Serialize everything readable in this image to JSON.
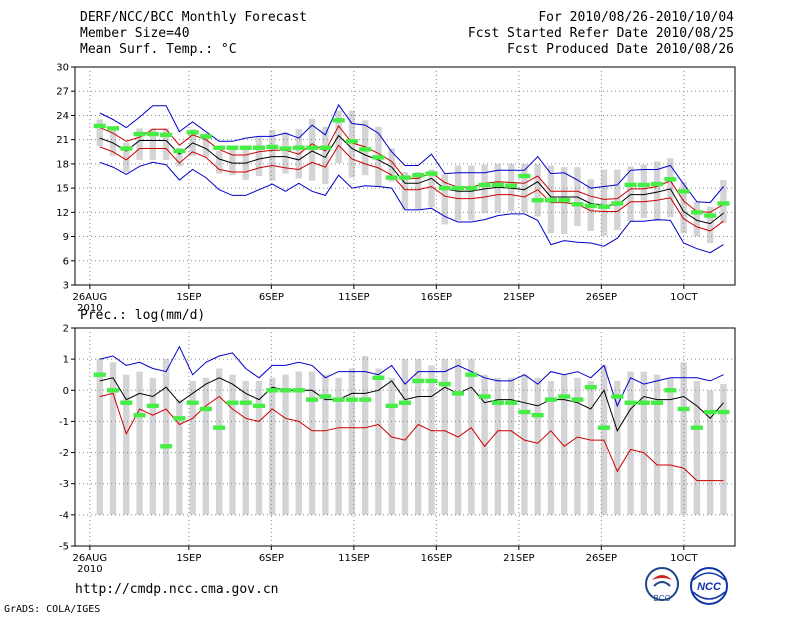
{
  "header": {
    "line1_left": "DERF/NCC/BCC Monthly Forecast",
    "line2_left": "Member Size=40",
    "line3_left": "Mean Surf. Temp.: °C",
    "line1_right": "For 2010/08/26-2010/10/04",
    "line2_right": "Fcst Started Refer Date 2010/08/25",
    "line3_right": "Fcst Produced Date 2010/08/26"
  },
  "prec_label": "Prec.: log(mm/d)",
  "footer": {
    "url": "http://cmdp.ncc.cma.gov.cn",
    "credit": "GrADS: COLA/IGES"
  },
  "logos": {
    "left": "BCC",
    "right": "NCC"
  },
  "colors": {
    "box": "#d4d4d6",
    "max": "#0000cc",
    "min": "#0000cc",
    "mean": "#000000",
    "spread": "#cc0000",
    "observed": "#44ee44",
    "grid": "#888888"
  },
  "chart_data": [
    {
      "type": "line",
      "title": "Mean Surf. Temp.: °C",
      "x_tick_labels": [
        "26AUG\n2010",
        "1SEP",
        "6SEP",
        "11SEP",
        "16SEP",
        "21SEP",
        "26SEP",
        "1OCT"
      ],
      "x_tick_days": [
        1,
        7,
        12,
        17,
        22,
        27,
        32,
        37
      ],
      "ylim": [
        3,
        30
      ],
      "y_ticks": [
        3,
        6,
        9,
        12,
        15,
        18,
        21,
        24,
        27,
        30
      ],
      "days": 40,
      "series": [
        {
          "name": "max",
          "values": [
            24.3,
            23.5,
            22.5,
            23.8,
            25.2,
            25.2,
            22.0,
            23.2,
            22.0,
            20.8,
            20.8,
            21.2,
            21.4,
            21.4,
            21.8,
            21.2,
            22.8,
            21.6,
            25.3,
            23.0,
            22.8,
            21.8,
            19.5,
            17.8,
            17.8,
            19.2,
            16.8,
            16.9,
            16.9,
            16.9,
            17.2,
            17.2,
            17.2,
            18.9,
            16.8,
            16.9,
            16.0,
            15.0,
            15.2,
            15.4,
            17.2,
            17.3,
            17.3,
            17.8,
            15.5,
            13.3,
            13.2,
            15.2
          ]
        },
        {
          "name": "upper",
          "values": [
            22.5,
            21.8,
            20.8,
            21.3,
            22.3,
            22.3,
            20.3,
            21.6,
            21.0,
            19.8,
            19.1,
            19.1,
            19.5,
            19.7,
            19.7,
            19.2,
            20.5,
            19.6,
            22.7,
            20.6,
            20.1,
            19.3,
            18.3,
            16.2,
            16.2,
            16.9,
            15.7,
            15.1,
            15.1,
            15.6,
            15.8,
            15.7,
            15.6,
            16.5,
            14.6,
            14.6,
            14.6,
            14.0,
            13.6,
            13.7,
            14.9,
            14.9,
            15.2,
            15.9,
            13.4,
            12.1,
            12.0,
            13.0
          ]
        },
        {
          "name": "mean",
          "values": [
            21.2,
            20.6,
            19.6,
            20.9,
            20.9,
            20.9,
            19.2,
            20.6,
            19.9,
            18.6,
            18.1,
            18.1,
            18.6,
            18.9,
            18.9,
            18.5,
            19.6,
            18.8,
            21.5,
            19.9,
            19.1,
            18.5,
            17.6,
            15.6,
            15.6,
            16.2,
            14.9,
            14.6,
            14.6,
            14.9,
            15.1,
            15.0,
            14.8,
            15.8,
            13.9,
            13.9,
            13.9,
            13.1,
            12.9,
            12.9,
            14.2,
            14.2,
            14.5,
            14.9,
            12.1,
            11.0,
            10.6,
            11.9
          ]
        },
        {
          "name": "lower",
          "values": [
            20.1,
            19.5,
            18.5,
            19.9,
            19.9,
            19.9,
            18.1,
            19.5,
            18.8,
            17.3,
            17.0,
            17.0,
            17.5,
            17.8,
            17.5,
            17.3,
            18.2,
            17.6,
            20.3,
            18.6,
            18.0,
            17.5,
            16.6,
            14.8,
            14.8,
            15.2,
            14.0,
            13.7,
            13.7,
            13.9,
            14.2,
            14.2,
            13.9,
            14.8,
            13.2,
            13.2,
            13.0,
            12.2,
            12.1,
            12.1,
            13.3,
            13.3,
            13.5,
            13.8,
            11.2,
            10.2,
            9.7,
            10.9
          ]
        },
        {
          "name": "min",
          "values": [
            18.2,
            17.6,
            16.7,
            17.7,
            18.2,
            17.9,
            16.0,
            17.3,
            16.3,
            14.8,
            14.1,
            14.1,
            14.8,
            15.5,
            14.6,
            15.6,
            14.6,
            14.1,
            16.6,
            15.0,
            15.3,
            15.2,
            15.0,
            12.3,
            12.3,
            12.5,
            11.5,
            10.8,
            10.8,
            11.1,
            11.6,
            11.8,
            11.8,
            11.0,
            8.0,
            8.5,
            8.3,
            8.2,
            7.8,
            8.8,
            10.9,
            10.9,
            11.1,
            11.0,
            8.2,
            7.5,
            7.0,
            8.0
          ]
        },
        {
          "name": "box_top",
          "values": [
            23.5,
            22.5,
            20.6,
            22.4,
            22.4,
            22.4,
            20.0,
            22.3,
            21.8,
            19.6,
            20.0,
            20.0,
            21.3,
            22.2,
            21.9,
            22.3,
            23.6,
            22.6,
            24.6,
            24.6,
            23.4,
            22.6,
            19.9,
            17.0,
            17.0,
            17.3,
            16.7,
            17.8,
            17.8,
            17.9,
            18.0,
            18.0,
            18.0,
            18.0,
            17.8,
            17.6,
            17.6,
            16.1,
            17.3,
            17.3,
            17.7,
            17.9,
            18.3,
            18.7,
            15.8,
            13.3,
            12.7,
            16.0
          ]
        },
        {
          "name": "box_bottom",
          "values": [
            20.2,
            19.0,
            17.0,
            18.5,
            18.5,
            18.5,
            17.7,
            19.0,
            18.8,
            16.8,
            16.6,
            16.0,
            16.5,
            15.9,
            16.8,
            16.2,
            15.9,
            15.5,
            18.1,
            16.3,
            16.6,
            15.2,
            15.8,
            12.4,
            12.4,
            12.6,
            10.5,
            11.0,
            11.0,
            11.9,
            11.9,
            12.1,
            12.0,
            11.5,
            9.4,
            9.3,
            10.3,
            9.7,
            9.1,
            9.8,
            10.9,
            11.3,
            10.9,
            11.4,
            9.4,
            9.0,
            8.2,
            10.7
          ]
        },
        {
          "name": "observed",
          "values": [
            22.7,
            22.4,
            19.9,
            21.7,
            21.7,
            21.6,
            19.6,
            21.9,
            21.4,
            20.0,
            20.0,
            20.0,
            20.0,
            20.1,
            19.9,
            20.0,
            20.0,
            20.0,
            23.4,
            20.8,
            19.8,
            18.8,
            16.3,
            16.3,
            16.6,
            16.8,
            15.0,
            15.0,
            15.0,
            15.4,
            15.4,
            15.3,
            16.5,
            13.5,
            13.5,
            13.5,
            13.0,
            12.8,
            12.7,
            13.1,
            15.4,
            15.4,
            15.5,
            16.1,
            14.6,
            12.0,
            11.6,
            13.1
          ]
        }
      ]
    },
    {
      "type": "line",
      "title": "Prec.: log(mm/d)",
      "x_tick_labels": [
        "26AUG\n2010",
        "1SEP",
        "6SEP",
        "11SEP",
        "16SEP",
        "21SEP",
        "26SEP",
        "1OCT"
      ],
      "x_tick_days": [
        1,
        7,
        12,
        17,
        22,
        27,
        32,
        37
      ],
      "ylim": [
        -5,
        2
      ],
      "y_ticks": [
        -5,
        -4,
        -3,
        -2,
        -1,
        0,
        1,
        2
      ],
      "days": 40,
      "series": [
        {
          "name": "max",
          "values": [
            1.0,
            1.1,
            0.8,
            0.9,
            0.7,
            0.6,
            1.4,
            0.5,
            0.9,
            1.1,
            1.2,
            0.7,
            0.4,
            0.8,
            0.8,
            0.9,
            0.8,
            0.4,
            0.6,
            0.6,
            0.6,
            0.5,
            0.8,
            0.2,
            0.6,
            0.6,
            0.6,
            0.8,
            0.6,
            0.4,
            0.3,
            0.3,
            0.5,
            0.2,
            0.6,
            0.5,
            0.6,
            0.4,
            0.8,
            -0.5,
            0.4,
            0.2,
            0.3,
            0.4,
            0.4,
            0.4,
            0.3,
            0.5
          ]
        },
        {
          "name": "mean",
          "values": [
            0.3,
            0.4,
            -0.3,
            -0.1,
            -0.2,
            0.1,
            -0.4,
            -0.1,
            0.2,
            0.4,
            0.2,
            -0.1,
            -0.3,
            0.1,
            0.0,
            0.0,
            0.0,
            -0.3,
            -0.3,
            -0.1,
            -0.1,
            0.0,
            0.3,
            -0.3,
            -0.2,
            -0.2,
            0.1,
            -0.1,
            0.1,
            -0.4,
            -0.3,
            -0.3,
            -0.4,
            -0.5,
            -0.3,
            -0.3,
            -0.4,
            -0.6,
            0.0,
            -1.3,
            -0.6,
            -0.2,
            -0.3,
            -0.3,
            -0.2,
            -0.5,
            -0.9,
            -0.4
          ]
        },
        {
          "name": "lower",
          "values": [
            -0.2,
            -0.1,
            -1.4,
            -0.6,
            -0.8,
            -0.6,
            -1.1,
            -0.9,
            -0.5,
            -0.2,
            -0.6,
            -0.9,
            -1.0,
            -0.6,
            -0.9,
            -1.0,
            -1.3,
            -1.3,
            -1.2,
            -1.2,
            -1.2,
            -1.1,
            -1.5,
            -1.6,
            -1.1,
            -1.3,
            -1.3,
            -1.5,
            -1.2,
            -1.8,
            -1.3,
            -1.3,
            -1.6,
            -1.7,
            -1.3,
            -1.8,
            -1.5,
            -1.6,
            -1.6,
            -2.6,
            -1.9,
            -2.0,
            -2.4,
            -2.4,
            -2.5,
            -2.9,
            -2.9,
            -2.9
          ]
        },
        {
          "name": "box_top",
          "values": [
            1.0,
            0.9,
            0.5,
            0.6,
            0.4,
            1.0,
            -0.3,
            0.3,
            0.4,
            0.7,
            0.5,
            0.3,
            0.3,
            0.4,
            0.5,
            0.6,
            0.6,
            0.5,
            0.4,
            0.7,
            1.1,
            0.7,
            0.4,
            1.0,
            1.0,
            0.8,
            1.0,
            1.0,
            1.0,
            0.5,
            0.4,
            0.4,
            0.5,
            0.4,
            0.3,
            0.5,
            0.4,
            0.3,
            0.8,
            0.3,
            0.6,
            0.6,
            0.5,
            0.4,
            0.9,
            0.3,
            0.0,
            0.2
          ]
        },
        {
          "name": "observed",
          "values": [
            0.5,
            0.0,
            -0.4,
            -0.8,
            -0.5,
            -1.8,
            -0.9,
            -0.4,
            -0.6,
            -1.2,
            -0.4,
            -0.4,
            -0.5,
            0.0,
            0.0,
            0.0,
            -0.3,
            -0.2,
            -0.3,
            -0.3,
            -0.3,
            0.4,
            -0.5,
            -0.4,
            0.3,
            0.3,
            0.2,
            -0.1,
            0.5,
            -0.2,
            -0.4,
            -0.4,
            -0.7,
            -0.8,
            -0.3,
            -0.2,
            -0.3,
            0.1,
            -1.2,
            -0.2,
            -0.4,
            -0.4,
            -0.4,
            0.0,
            -0.6,
            -1.2,
            -0.7,
            -0.7
          ]
        }
      ]
    }
  ]
}
